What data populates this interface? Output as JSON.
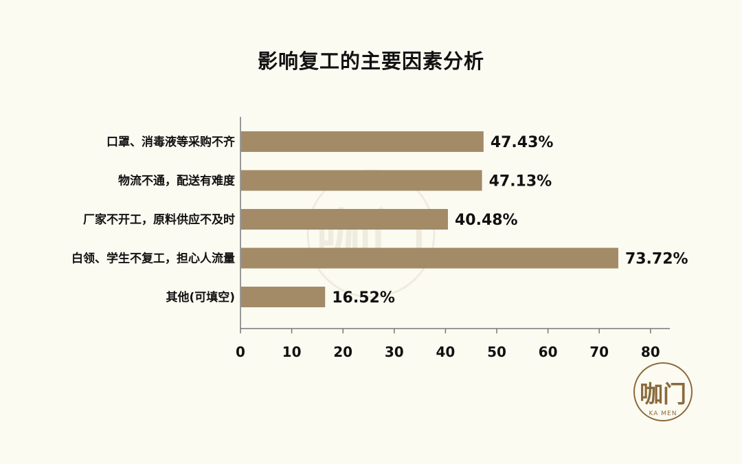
{
  "chart_data": {
    "type": "bar",
    "orientation": "horizontal",
    "title": "影响复工的主要因素分析",
    "categories": [
      "口罩、消毒液等采购不齐",
      "物流不通，配送有难度",
      "厂家不开工，原料供应不及时",
      "白领、学生不复工，担心人流量",
      "其他(可填空)"
    ],
    "values": [
      47.43,
      47.13,
      40.48,
      73.72,
      16.52
    ],
    "value_labels": [
      "47.43%",
      "47.13%",
      "40.48%",
      "73.72%",
      "16.52%"
    ],
    "xlim": [
      0,
      80
    ],
    "xticks": [
      0,
      10,
      20,
      30,
      40,
      50,
      60,
      70,
      80
    ],
    "xlabel": "",
    "ylabel": "",
    "grid": false,
    "bar_color": "#a38b68"
  },
  "brand": {
    "logo_text": "咖门",
    "logo_sub": "KA MEN",
    "color": "#8a6a3c"
  }
}
